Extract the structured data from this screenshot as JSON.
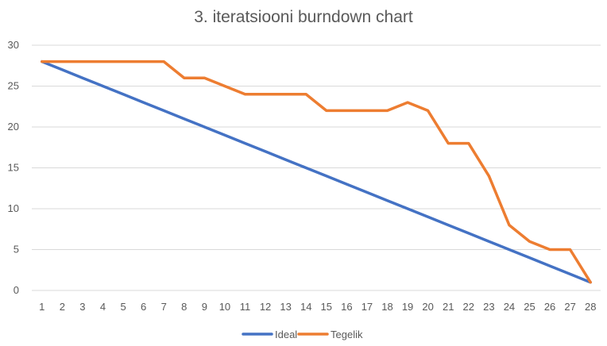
{
  "chart_data": {
    "type": "line",
    "title": "3. iteratsiooni burndown chart",
    "xlabel": "",
    "ylabel": "",
    "ylim": [
      0,
      30
    ],
    "yticks": [
      0,
      5,
      10,
      15,
      20,
      25,
      30
    ],
    "grid": true,
    "legend": "bottom",
    "categories": [
      "1",
      "2",
      "3",
      "4",
      "5",
      "6",
      "7",
      "8",
      "9",
      "10",
      "11",
      "12",
      "13",
      "14",
      "15",
      "16",
      "17",
      "18",
      "19",
      "20",
      "21",
      "22",
      "23",
      "24",
      "25",
      "26",
      "27",
      "28"
    ],
    "series": [
      {
        "name": "Ideal",
        "color": "#4472c4",
        "values": [
          28,
          27,
          26,
          25,
          24,
          23,
          22,
          21,
          20,
          19,
          18,
          17,
          16,
          15,
          14,
          13,
          12,
          11,
          10,
          9,
          8,
          7,
          6,
          5,
          4,
          3,
          2,
          1
        ]
      },
      {
        "name": "Tegelik",
        "color": "#ed7d31",
        "values": [
          28,
          28,
          28,
          28,
          28,
          28,
          28,
          26,
          26,
          25,
          24,
          24,
          24,
          24,
          22,
          22,
          22,
          22,
          23,
          22,
          18,
          18,
          14,
          8,
          6,
          5,
          5,
          1
        ]
      }
    ]
  }
}
